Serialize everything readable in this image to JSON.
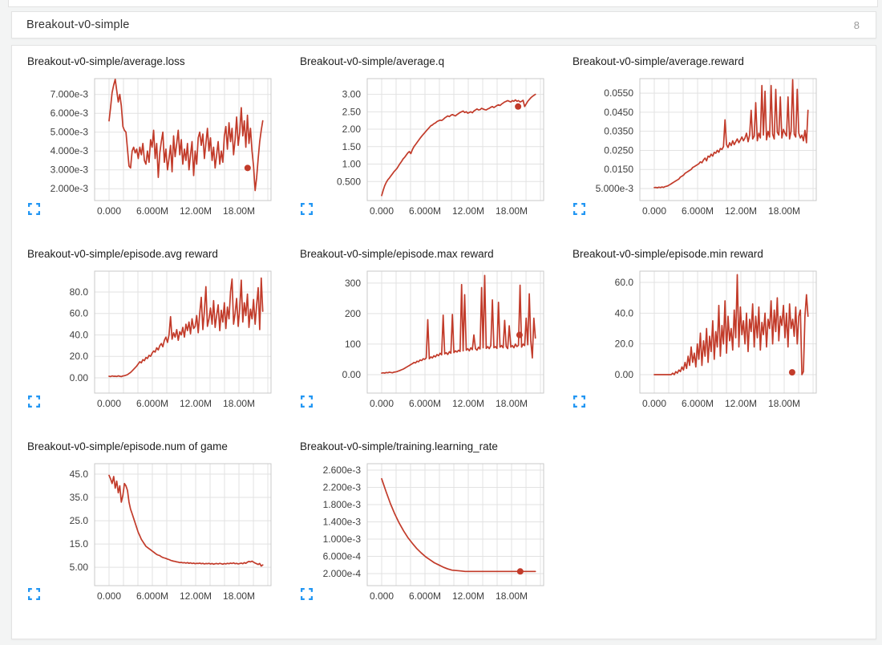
{
  "section": {
    "title": "Breakout-v0-simple",
    "count": "8"
  },
  "colors": {
    "line": "#c23b2a",
    "grid": "#e2e2e2",
    "plot_border": "#c9c9c9",
    "expand_icon": "#2196f3",
    "tick_text": "#3e3e3e",
    "card_bg": "#ffffff",
    "page_bg": "#f3f4f4"
  },
  "axis": {
    "x_unit": "millions of steps",
    "x_domain": [
      -2,
      22.44
    ],
    "x_grid_step": 2,
    "x_grid_max": 22,
    "x_data_max": 21.3,
    "x_ticks": [
      {
        "v": 0,
        "label": "0.000"
      },
      {
        "v": 6,
        "label": "6.000M"
      },
      {
        "v": 12,
        "label": "12.00M"
      },
      {
        "v": 18,
        "label": "18.00M"
      }
    ]
  },
  "chart_data": [
    {
      "type": "line",
      "title": "Breakout-v0-simple/average.loss",
      "y_unit_scale": 0.001,
      "ymin": 1.37,
      "ymax": 7.84,
      "yticks": [
        {
          "v": 2,
          "label": "2.000e-3"
        },
        {
          "v": 3,
          "label": "3.000e-3"
        },
        {
          "v": 4,
          "label": "4.000e-3"
        },
        {
          "v": 5,
          "label": "5.000e-3"
        },
        {
          "v": 6,
          "label": "6.000e-3"
        },
        {
          "v": 7,
          "label": "7.000e-3"
        }
      ],
      "dot": {
        "x": 19.2,
        "y": 3.1
      },
      "values": [
        5.6,
        6.3,
        7.1,
        7.5,
        7.8,
        7.2,
        6.6,
        7.0,
        6.4,
        5.3,
        5.1,
        5.0,
        4.1,
        3.2,
        3.1,
        4.0,
        4.2,
        3.9,
        4.1,
        3.6,
        4.2,
        3.8,
        4.4,
        3.5,
        3.3,
        4.0,
        3.4,
        4.6,
        4.2,
        5.1,
        3.6,
        4.4,
        2.6,
        3.9,
        4.5,
        5.0,
        3.4,
        4.1,
        3.0,
        3.6,
        4.3,
        2.9,
        4.8,
        3.7,
        4.4,
        5.1,
        3.8,
        4.6,
        3.3,
        4.1,
        3.5,
        4.4,
        3.0,
        3.8,
        4.5,
        2.7,
        4.0,
        3.3,
        4.7,
        5.0,
        4.3,
        4.9,
        3.6,
        4.4,
        5.2,
        4.0,
        4.7,
        3.5,
        4.2,
        3.1,
        3.8,
        4.5,
        3.3,
        4.0,
        3.4,
        4.8,
        5.3,
        4.1,
        5.5,
        4.5,
        5.2,
        3.8,
        4.6,
        5.8,
        4.3,
        5.0,
        6.3,
        4.8,
        5.6,
        4.2,
        5.9,
        4.4,
        5.2,
        4.0,
        3.2,
        1.9,
        2.6,
        3.6,
        4.5,
        5.1,
        5.6
      ]
    },
    {
      "type": "line",
      "title": "Breakout-v0-simple/average.q",
      "ymin": -0.045,
      "ymax": 3.45,
      "yticks": [
        {
          "v": 0.5,
          "label": "0.500"
        },
        {
          "v": 1.0,
          "label": "1.00"
        },
        {
          "v": 1.5,
          "label": "1.50"
        },
        {
          "v": 2.0,
          "label": "2.00"
        },
        {
          "v": 2.5,
          "label": "2.50"
        },
        {
          "v": 3.0,
          "label": "3.00"
        }
      ],
      "dot": {
        "x": 18.9,
        "y": 2.65
      },
      "values": [
        0.1,
        0.25,
        0.38,
        0.48,
        0.55,
        0.6,
        0.66,
        0.72,
        0.78,
        0.83,
        0.88,
        0.95,
        1.02,
        1.08,
        1.15,
        1.2,
        1.26,
        1.32,
        1.36,
        1.3,
        1.42,
        1.5,
        1.56,
        1.62,
        1.68,
        1.74,
        1.8,
        1.85,
        1.9,
        1.95,
        2.0,
        2.05,
        2.1,
        2.12,
        2.16,
        2.18,
        2.22,
        2.24,
        2.26,
        2.25,
        2.28,
        2.32,
        2.35,
        2.38,
        2.36,
        2.4,
        2.42,
        2.4,
        2.38,
        2.42,
        2.45,
        2.48,
        2.5,
        2.52,
        2.48,
        2.5,
        2.46,
        2.48,
        2.5,
        2.47,
        2.52,
        2.55,
        2.58,
        2.55,
        2.56,
        2.6,
        2.58,
        2.56,
        2.55,
        2.58,
        2.6,
        2.63,
        2.65,
        2.62,
        2.65,
        2.68,
        2.7,
        2.68,
        2.72,
        2.75,
        2.78,
        2.8,
        2.82,
        2.8,
        2.78,
        2.82,
        2.8,
        2.84,
        2.8,
        2.82,
        2.78,
        2.8,
        2.83,
        2.65,
        2.72,
        2.8,
        2.85,
        2.9,
        2.94,
        2.97,
        3.0
      ]
    },
    {
      "type": "line",
      "title": "Breakout-v0-simple/average.reward",
      "ymin": -0.0013,
      "ymax": 0.0626,
      "yticks": [
        {
          "v": 0.005,
          "label": "5.000e-3"
        },
        {
          "v": 0.015,
          "label": "0.0150"
        },
        {
          "v": 0.025,
          "label": "0.0250"
        },
        {
          "v": 0.035,
          "label": "0.0350"
        },
        {
          "v": 0.045,
          "label": "0.0450"
        },
        {
          "v": 0.055,
          "label": "0.0550"
        }
      ],
      "dot": null,
      "values": [
        0.0055,
        0.0056,
        0.0054,
        0.0057,
        0.0055,
        0.0058,
        0.0056,
        0.006,
        0.0062,
        0.0065,
        0.007,
        0.0075,
        0.008,
        0.0085,
        0.009,
        0.0095,
        0.01,
        0.011,
        0.0115,
        0.012,
        0.013,
        0.0135,
        0.014,
        0.0145,
        0.015,
        0.016,
        0.0165,
        0.017,
        0.0175,
        0.018,
        0.019,
        0.0185,
        0.02,
        0.021,
        0.0195,
        0.022,
        0.0215,
        0.023,
        0.022,
        0.024,
        0.0235,
        0.025,
        0.024,
        0.026,
        0.0255,
        0.027,
        0.041,
        0.028,
        0.0265,
        0.029,
        0.0275,
        0.03,
        0.028,
        0.0295,
        0.031,
        0.029,
        0.0305,
        0.032,
        0.03,
        0.0315,
        0.034,
        0.0295,
        0.033,
        0.046,
        0.031,
        0.0325,
        0.05,
        0.03,
        0.034,
        0.0315,
        0.059,
        0.033,
        0.056,
        0.0305,
        0.035,
        0.032,
        0.059,
        0.0335,
        0.031,
        0.057,
        0.0345,
        0.033,
        0.053,
        0.0315,
        0.036,
        0.034,
        0.0325,
        0.053,
        0.031,
        0.035,
        0.062,
        0.0335,
        0.032,
        0.057,
        0.034,
        0.0315,
        0.033,
        0.03,
        0.0355,
        0.029,
        0.046
      ]
    },
    {
      "type": "line",
      "title": "Breakout-v0-simple/episode.avg reward",
      "ymin": -14.2,
      "ymax": 99.4,
      "yticks": [
        {
          "v": 0,
          "label": "0.00"
        },
        {
          "v": 20,
          "label": "20.0"
        },
        {
          "v": 40,
          "label": "40.0"
        },
        {
          "v": 60,
          "label": "60.0"
        },
        {
          "v": 80,
          "label": "80.0"
        }
      ],
      "dot": null,
      "values": [
        1.5,
        1.2,
        1.8,
        1.4,
        1.6,
        1.3,
        1.9,
        1.5,
        1.2,
        1.8,
        2.0,
        2.5,
        3.0,
        4.0,
        5.0,
        6.5,
        8.0,
        9.5,
        11,
        13,
        15,
        14,
        17,
        16,
        19,
        18,
        21,
        20,
        23,
        25,
        24,
        28,
        26,
        30,
        32,
        29,
        35,
        38,
        33,
        40,
        57,
        36,
        42,
        38,
        45,
        35,
        43,
        40,
        47,
        38,
        50,
        44,
        52,
        41,
        55,
        46,
        48,
        58,
        42,
        60,
        75,
        45,
        62,
        85,
        48,
        55,
        65,
        50,
        72,
        47,
        58,
        68,
        44,
        63,
        52,
        70,
        46,
        66,
        55,
        80,
        92,
        50,
        60,
        74,
        48,
        65,
        91,
        52,
        70,
        58,
        78,
        47,
        64,
        55,
        73,
        50,
        68,
        84,
        45,
        93,
        62
      ]
    },
    {
      "type": "line",
      "title": "Breakout-v0-simple/episode.max reward",
      "ymin": -60.5,
      "ymax": 339,
      "yticks": [
        {
          "v": 0,
          "label": "0.00"
        },
        {
          "v": 100,
          "label": "100"
        },
        {
          "v": 200,
          "label": "200"
        },
        {
          "v": 300,
          "label": "300"
        }
      ],
      "dot": {
        "x": 19.1,
        "y": 130
      },
      "values": [
        5,
        6,
        5,
        7,
        6,
        8,
        7,
        6,
        8,
        9,
        10,
        12,
        14,
        16,
        18,
        21,
        24,
        27,
        30,
        33,
        36,
        40,
        38,
        44,
        42,
        48,
        46,
        52,
        50,
        55,
        180,
        52,
        58,
        55,
        62,
        58,
        66,
        62,
        70,
        65,
        195,
        68,
        72,
        66,
        75,
        70,
        197,
        72,
        78,
        74,
        80,
        76,
        295,
        78,
        262,
        80,
        85,
        78,
        88,
        82,
        130,
        85,
        80,
        90,
        84,
        285,
        88,
        325,
        86,
        92,
        85,
        95,
        245,
        88,
        92,
        86,
        237,
        90,
        95,
        88,
        178,
        92,
        85,
        160,
        90,
        95,
        88,
        100,
        92,
        96,
        293,
        90,
        100,
        95,
        185,
        98,
        265,
        110,
        55,
        185,
        120
      ]
    },
    {
      "type": "line",
      "title": "Breakout-v0-simple/episode.min reward",
      "ymin": -12,
      "ymax": 67.3,
      "yticks": [
        {
          "v": 0,
          "label": "0.00"
        },
        {
          "v": 20,
          "label": "20.0"
        },
        {
          "v": 40,
          "label": "40.0"
        },
        {
          "v": 60,
          "label": "60.0"
        }
      ],
      "dot": {
        "x": 19.1,
        "y": 1.5
      },
      "values": [
        0,
        0,
        0,
        0,
        0,
        0,
        0,
        0,
        0,
        0,
        0,
        0,
        1,
        0,
        2,
        1,
        3,
        2,
        5,
        3,
        8,
        4,
        12,
        6,
        18,
        8,
        14,
        5,
        20,
        10,
        27,
        6,
        22,
        12,
        30,
        8,
        25,
        15,
        35,
        10,
        28,
        18,
        45,
        12,
        32,
        20,
        48,
        14,
        38,
        22,
        30,
        16,
        42,
        24,
        65,
        18,
        44,
        26,
        35,
        20,
        40,
        15,
        36,
        28,
        46,
        18,
        38,
        24,
        44,
        16,
        34,
        26,
        40,
        18,
        36,
        30,
        48,
        20,
        42,
        28,
        50,
        22,
        38,
        32,
        45,
        24,
        40,
        18,
        46,
        30,
        36,
        25,
        44,
        20,
        38,
        42,
        0,
        2,
        38,
        52,
        38
      ]
    },
    {
      "type": "line",
      "title": "Breakout-v0-simple/episode.num of game",
      "ymin": -2.9,
      "ymax": 49.5,
      "yticks": [
        {
          "v": 5,
          "label": "5.00"
        },
        {
          "v": 15,
          "label": "15.0"
        },
        {
          "v": 25,
          "label": "25.0"
        },
        {
          "v": 35,
          "label": "35.0"
        },
        {
          "v": 45,
          "label": "45.0"
        }
      ],
      "dot": null,
      "values": [
        44.5,
        43,
        41,
        44,
        39,
        42,
        37,
        40,
        33,
        36,
        41,
        40,
        38,
        33,
        30,
        28,
        26,
        24,
        22,
        20,
        18.5,
        17,
        16,
        15,
        14,
        13.5,
        13,
        12.5,
        12,
        11.5,
        11,
        10.5,
        10.2,
        10,
        9.5,
        9.2,
        9,
        8.8,
        8.5,
        8.3,
        8,
        7.8,
        7.6,
        7.5,
        7.3,
        7.2,
        7,
        7.1,
        6.9,
        7,
        6.8,
        7,
        6.7,
        6.9,
        6.6,
        6.8,
        6.5,
        6.7,
        6.6,
        6.8,
        6.5,
        6.7,
        6.4,
        6.6,
        6.5,
        6.7,
        6.4,
        6.6,
        6.3,
        6.5,
        6.6,
        6.4,
        6.7,
        6.5,
        6.3,
        6.6,
        6.4,
        6.7,
        6.5,
        6.8,
        6.6,
        6.9,
        6.5,
        6.7,
        6.4,
        6.6,
        6.8,
        6.5,
        7,
        6.7,
        7.2,
        7.5,
        7.3,
        7.6,
        7.2,
        6.8,
        6.5,
        6.2,
        6.6,
        5.5,
        6.0
      ]
    },
    {
      "type": "line",
      "title": "Breakout-v0-simple/training.learning_rate",
      "y_unit_scale": 0.001,
      "ymin": -0.08,
      "ymax": 2.75,
      "yticks": [
        {
          "v": 0.2,
          "label": "2.000e-4"
        },
        {
          "v": 0.6,
          "label": "6.000e-4"
        },
        {
          "v": 1.0,
          "label": "1.000e-3"
        },
        {
          "v": 1.4,
          "label": "1.400e-3"
        },
        {
          "v": 1.8,
          "label": "1.800e-3"
        },
        {
          "v": 2.2,
          "label": "2.200e-3"
        },
        {
          "v": 2.6,
          "label": "2.600e-3"
        }
      ],
      "dot": {
        "x": 19.2,
        "y": 0.25
      },
      "values": [
        2.4,
        2.1,
        1.82,
        1.58,
        1.37,
        1.19,
        1.03,
        0.9,
        0.78,
        0.68,
        0.59,
        0.52,
        0.45,
        0.4,
        0.35,
        0.31,
        0.28,
        0.27,
        0.26,
        0.25,
        0.25,
        0.25,
        0.25,
        0.25,
        0.25,
        0.25,
        0.25,
        0.25,
        0.25,
        0.25,
        0.25,
        0.25,
        0.25,
        0.25,
        0.25,
        0.25
      ]
    }
  ]
}
